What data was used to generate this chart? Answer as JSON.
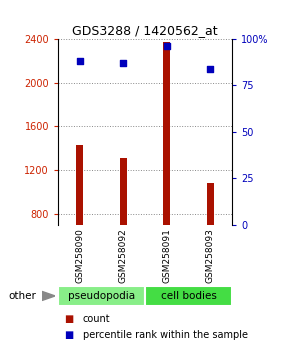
{
  "title": "GDS3288 / 1420562_at",
  "samples": [
    "GSM258090",
    "GSM258092",
    "GSM258091",
    "GSM258093"
  ],
  "bar_values": [
    1430,
    1310,
    2370,
    1080
  ],
  "bar_bottom": 700,
  "bar_color": "#aa1100",
  "dot_values_pct": [
    88,
    87,
    96,
    84
  ],
  "dot_color": "#0000bb",
  "ylim_left": [
    700,
    2400
  ],
  "ylim_right": [
    0,
    100
  ],
  "yticks_left": [
    800,
    1200,
    1600,
    2000,
    2400
  ],
  "yticks_right": [
    0,
    25,
    50,
    75,
    100
  ],
  "groups": [
    {
      "label": "pseudopodia",
      "color": "#88ee88"
    },
    {
      "label": "cell bodies",
      "color": "#44dd44"
    }
  ],
  "other_label": "other",
  "legend_count_label": "count",
  "legend_pct_label": "percentile rank within the sample",
  "left_tick_color": "#cc2200",
  "right_tick_color": "#0000bb",
  "grid_color": "#888888",
  "bg_color": "#ffffff",
  "bar_width": 0.15,
  "x_positions": [
    0,
    1,
    2,
    3
  ],
  "sample_box_color": "#cccccc",
  "sample_box_border": "#999999"
}
